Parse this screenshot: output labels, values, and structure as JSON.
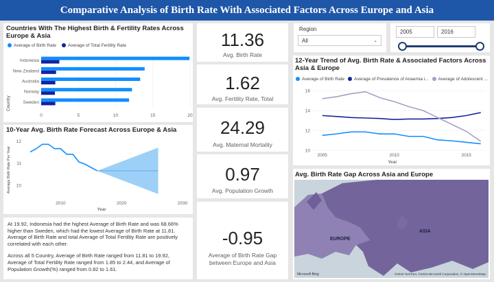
{
  "header": {
    "title": "Comparative Analysis of Birth Rate With Associated Factors Across Europe and Asia"
  },
  "bar_panel": {
    "title": "Countries With The Highest Birth & Fertility Rates Across Europe & Asia",
    "y_title": "Country",
    "legend": [
      {
        "label": "Average of Birth Rate",
        "color": "#118dff"
      },
      {
        "label": "Average of Total Fertility Rate",
        "color": "#12239e"
      }
    ]
  },
  "forecast_panel": {
    "title": "10-Year Avg. Birth Rate Forecast Across Europe & Asia",
    "y_title": "Average Birth Rate Per Year",
    "x_title": "Year"
  },
  "kpis": [
    {
      "value": "11.36",
      "label": "Avg. Birth Rate"
    },
    {
      "value": "1.62",
      "label": "Avg. Fertility Rate, Total"
    },
    {
      "value": "24.29",
      "label": "Avg. Maternal Mortality"
    },
    {
      "value": "0.97",
      "label": "Avg. Population Growth"
    },
    {
      "value": "-0.95",
      "label": "Average of Birth Rate Gap between Europe and Asia"
    }
  ],
  "slicers": {
    "region_label": "Region",
    "region_value": "All",
    "year_start": "2005",
    "year_end": "2016"
  },
  "trend_panel": {
    "title": "12-Year Trend of Avg. Birth Rate & Associated Factors Across Asia & Europe",
    "x_title": "Year",
    "legend": [
      {
        "label": "Average of Birth Rate",
        "color": "#118dff"
      },
      {
        "label": "Average of Prevalence of Anaemia i...",
        "color": "#12239e"
      },
      {
        "label": "Average of Adolescent ...",
        "color": "#a79fc4"
      }
    ]
  },
  "map_panel": {
    "title": "Avg. Birth Rate Gap Across Asia and Europe",
    "labels": {
      "asia": "ASIA",
      "europe": "EUROPE"
    },
    "logo": "Microsoft Bing",
    "copyright": "©2023 TomTom, ©2023 Microsoft Corporation, © OpenStreetMap"
  },
  "narrative": [
    "At 19.92, Indonesia had the highest Average of Birth Rate and was 68.66% higher than Sweden, which had the lowest Average of Birth Rate at 11.81. Average of Birth Rate and total Average of Total Fertility Rate are positively correlated with each other.",
    "Across all 5 Country, Average of Birth Rate ranged from 11.81 to 19.92, Average of Total Fertility Rate ranged from 1.85 to 2.44, and Average of Population Growth(%) ranged from 0.82 to 1.61."
  ],
  "chart_data": [
    {
      "type": "bar",
      "orientation": "horizontal",
      "title": "Countries With The Highest Birth & Fertility Rates Across Europe & Asia",
      "ylabel": "Country",
      "categories": [
        "Indonesia",
        "New Zealand",
        "Australia",
        "Norway",
        "Sweden"
      ],
      "series": [
        {
          "name": "Average of Birth Rate",
          "values": [
            19.92,
            13.9,
            13.3,
            12.2,
            11.81
          ]
        },
        {
          "name": "Average of Total Fertility Rate",
          "values": [
            2.44,
            2.0,
            1.9,
            1.85,
            1.9
          ]
        }
      ],
      "xlim": [
        0,
        20
      ],
      "xticks": [
        0,
        5,
        10,
        15,
        20
      ]
    },
    {
      "type": "line",
      "title": "10-Year Avg. Birth Rate Forecast Across Europe & Asia",
      "xlabel": "Year",
      "ylabel": "Average Birth Rate Per Year",
      "x": [
        2005,
        2006,
        2007,
        2008,
        2009,
        2010,
        2011,
        2012,
        2013,
        2014,
        2015,
        2016
      ],
      "values": [
        11.5,
        11.65,
        11.85,
        11.85,
        11.65,
        11.65,
        11.4,
        11.4,
        11.05,
        10.95,
        10.8,
        10.65
      ],
      "forecast": {
        "x": [
          2016,
          2026
        ],
        "value": 10.65,
        "upper": [
          10.65,
          11.7
        ],
        "lower": [
          10.65,
          9.6
        ]
      },
      "ylim": [
        9.5,
        12.2
      ],
      "yticks": [
        10,
        11,
        12
      ],
      "xticks": [
        2010,
        2020,
        2030
      ]
    },
    {
      "type": "line",
      "title": "12-Year Trend of Avg. Birth Rate & Associated Factors Across Asia & Europe",
      "xlabel": "Year",
      "x": [
        2005,
        2006,
        2007,
        2008,
        2009,
        2010,
        2011,
        2012,
        2013,
        2014,
        2015,
        2016
      ],
      "series": [
        {
          "name": "Average of Birth Rate",
          "values": [
            11.5,
            11.65,
            11.85,
            11.85,
            11.65,
            11.65,
            11.4,
            11.4,
            11.05,
            10.95,
            10.8,
            10.65
          ]
        },
        {
          "name": "Average of Prevalence of Anaemia i...",
          "values": [
            13.5,
            13.4,
            13.3,
            13.25,
            13.2,
            13.1,
            13.15,
            13.15,
            13.2,
            13.3,
            13.5,
            13.8
          ]
        },
        {
          "name": "Average of Adolescent ...",
          "values": [
            15.2,
            15.4,
            15.7,
            15.9,
            15.3,
            14.9,
            14.4,
            14.0,
            13.3,
            12.6,
            11.9,
            10.9
          ]
        }
      ],
      "ylim": [
        10,
        16.5
      ],
      "yticks": [
        10,
        12,
        14,
        16
      ],
      "xticks": [
        2005,
        2010,
        2015
      ]
    }
  ]
}
